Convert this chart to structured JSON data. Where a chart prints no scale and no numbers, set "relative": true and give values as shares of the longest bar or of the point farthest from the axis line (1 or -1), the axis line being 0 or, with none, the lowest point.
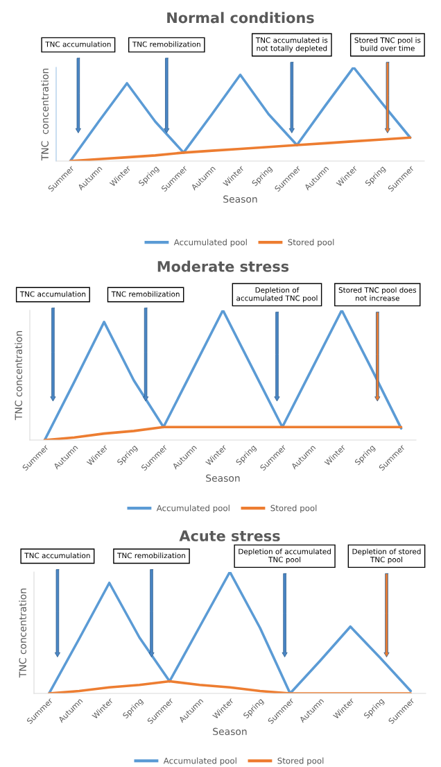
{
  "chart_data": [
    {
      "type": "line",
      "title": "Normal conditions",
      "xlabel": "Season",
      "ylabel": "TNC  concentration",
      "relative": true,
      "legend": "bottom",
      "grid": false,
      "categories": [
        "Summer",
        "Autumn",
        "Winter",
        "Spring",
        "Summer",
        "Autumn",
        "Winter",
        "Spring",
        "Summer",
        "Autumn",
        "Winter",
        "Spring",
        "Summer"
      ],
      "series": [
        {
          "name": "Accumulated pool",
          "color": "#5b9bd5",
          "values": [
            0,
            0.42,
            0.83,
            0.42,
            0.09,
            0.5,
            0.92,
            0.5,
            0.17,
            0.59,
            1.0,
            0.62,
            0.25
          ]
        },
        {
          "name": "Stored pool",
          "color": "#ed7d31",
          "values": [
            0,
            0.02,
            0.04,
            0.06,
            0.09,
            0.11,
            0.13,
            0.15,
            0.17,
            0.19,
            0.21,
            0.23,
            0.25
          ]
        }
      ],
      "annotations": [
        "TNC accumulation",
        "TNC remobilization",
        "TNC accumulated is\nnot totally depleted",
        "Stored TNC pool is\nbuild over time"
      ]
    },
    {
      "type": "line",
      "title": "Moderate stress",
      "xlabel": "Season",
      "ylabel": "TNC concentration",
      "relative": true,
      "legend": "bottom",
      "grid": false,
      "categories": [
        "Summer",
        "Autumn",
        "Winter",
        "Spring",
        "Summer",
        "Autumn",
        "Winter",
        "Spring",
        "Summer",
        "Autumn",
        "Winter",
        "Spring",
        "Summer"
      ],
      "series": [
        {
          "name": "Accumulated pool",
          "color": "#5b9bd5",
          "values": [
            0,
            0.45,
            0.91,
            0.46,
            0.1,
            0.55,
            1.0,
            0.55,
            0.1,
            0.55,
            1.0,
            0.55,
            0.09
          ]
        },
        {
          "name": "Stored pool",
          "color": "#ed7d31",
          "values": [
            0,
            0.02,
            0.05,
            0.07,
            0.1,
            0.1,
            0.1,
            0.1,
            0.1,
            0.1,
            0.1,
            0.1,
            0.1
          ]
        }
      ],
      "annotations": [
        "TNC accumulation",
        "TNC remobilization",
        "Depletion of\naccumulated TNC pool",
        "Stored TNC pool does\nnot increase"
      ]
    },
    {
      "type": "line",
      "title": "Acute stress",
      "xlabel": "Season",
      "ylabel": "TNC concentration",
      "relative": true,
      "legend": "bottom",
      "grid": false,
      "categories": [
        "Summer",
        "Autumn",
        "Winter",
        "Spring",
        "Summer",
        "Autumn",
        "Winter",
        "Spring",
        "Summer",
        "Autumn",
        "Winter",
        "Spring",
        "Summer"
      ],
      "series": [
        {
          "name": "Accumulated pool",
          "color": "#5b9bd5",
          "values": [
            0,
            0.45,
            0.91,
            0.46,
            0.1,
            0.55,
            1.0,
            0.54,
            0,
            0.27,
            0.55,
            0.29,
            0.02
          ]
        },
        {
          "name": "Stored pool",
          "color": "#ed7d31",
          "values": [
            0,
            0.02,
            0.05,
            0.07,
            0.1,
            0.07,
            0.05,
            0.02,
            0,
            0,
            0,
            0,
            0
          ]
        }
      ],
      "annotations": [
        "TNC accumulation",
        "TNC remobilization",
        "Depletion of accumulated\nTNC pool",
        "Depletion of stored\nTNC pool"
      ]
    }
  ]
}
